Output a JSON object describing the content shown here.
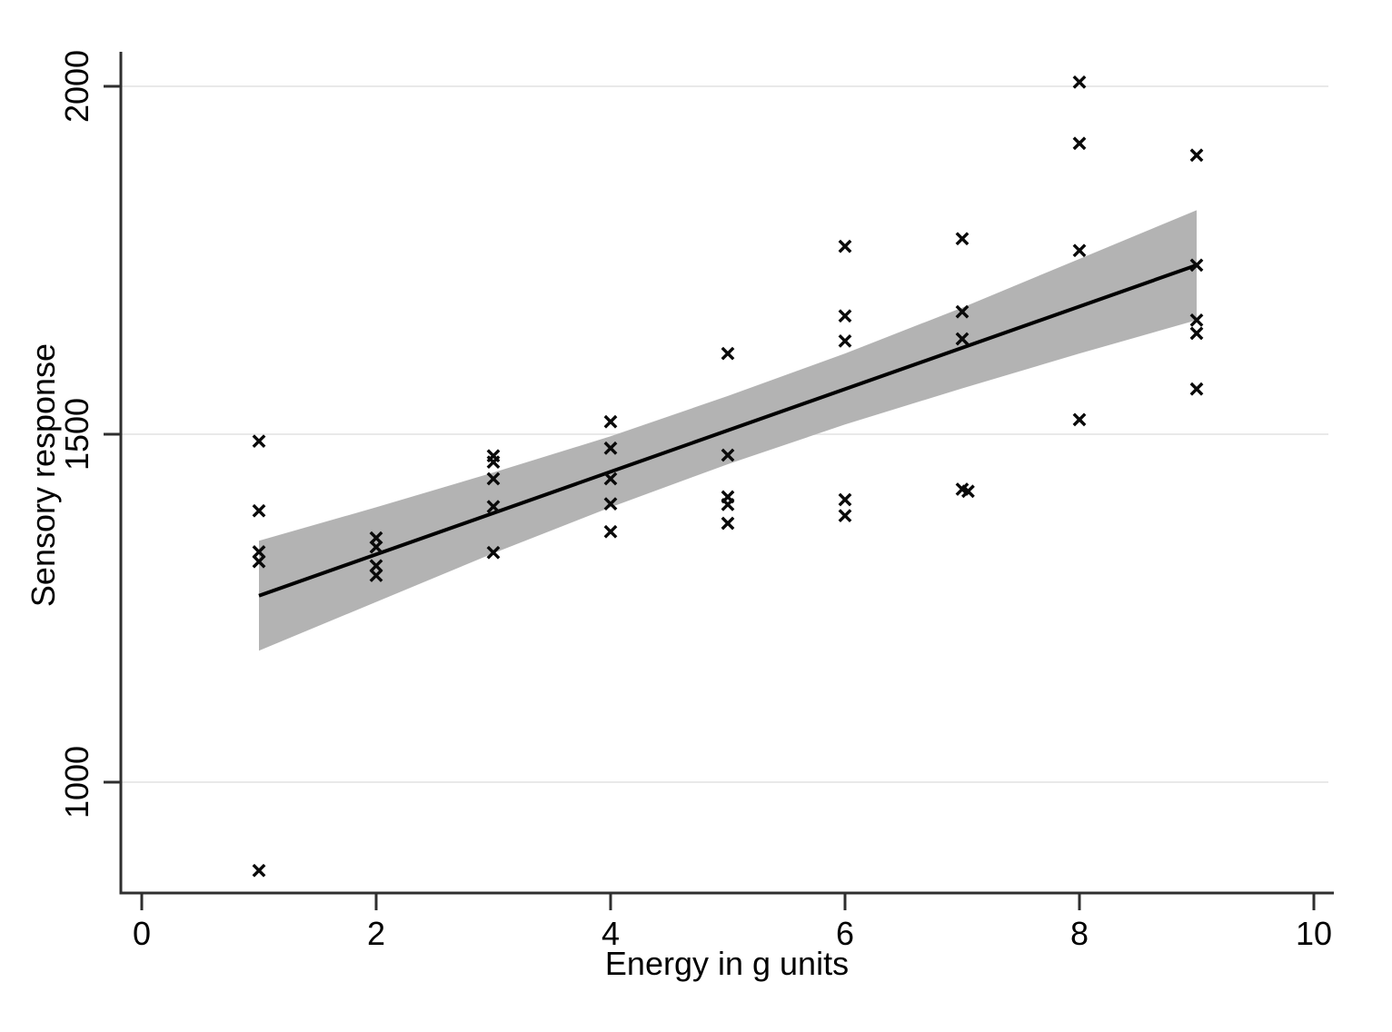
{
  "chart_data": {
    "type": "scatter",
    "title": "",
    "xlabel": "Energy in g units",
    "ylabel": "Sensory response",
    "xlim": [
      0,
      10.3
    ],
    "ylim": [
      840,
      2040
    ],
    "x_ticks": [
      0,
      2,
      4,
      6,
      8,
      10
    ],
    "y_ticks": [
      1000,
      1500,
      2000
    ],
    "grid": "horizontal-light",
    "legend_position": "none",
    "marker": "x",
    "points": [
      {
        "x": 1,
        "y": 1490
      },
      {
        "x": 1,
        "y": 1390
      },
      {
        "x": 1,
        "y": 1331
      },
      {
        "x": 1,
        "y": 1317
      },
      {
        "x": 1,
        "y": 873
      },
      {
        "x": 2,
        "y": 1351
      },
      {
        "x": 2,
        "y": 1338
      },
      {
        "x": 2,
        "y": 1311
      },
      {
        "x": 2,
        "y": 1297
      },
      {
        "x": 3,
        "y": 1469
      },
      {
        "x": 3,
        "y": 1460
      },
      {
        "x": 3,
        "y": 1436
      },
      {
        "x": 3,
        "y": 1396
      },
      {
        "x": 3,
        "y": 1330
      },
      {
        "x": 4,
        "y": 1518
      },
      {
        "x": 4,
        "y": 1480
      },
      {
        "x": 4,
        "y": 1436
      },
      {
        "x": 4,
        "y": 1400
      },
      {
        "x": 4,
        "y": 1360
      },
      {
        "x": 5,
        "y": 1616
      },
      {
        "x": 5,
        "y": 1470
      },
      {
        "x": 5,
        "y": 1410
      },
      {
        "x": 5,
        "y": 1399
      },
      {
        "x": 5,
        "y": 1372
      },
      {
        "x": 6,
        "y": 1770
      },
      {
        "x": 6,
        "y": 1670
      },
      {
        "x": 6,
        "y": 1634
      },
      {
        "x": 6,
        "y": 1406
      },
      {
        "x": 6,
        "y": 1383
      },
      {
        "x": 7,
        "y": 1781
      },
      {
        "x": 7,
        "y": 1676
      },
      {
        "x": 7,
        "y": 1637
      },
      {
        "x": 7,
        "y": 1421
      },
      {
        "x": 7.05,
        "y": 1418
      },
      {
        "x": 8,
        "y": 2006
      },
      {
        "x": 8,
        "y": 1918
      },
      {
        "x": 8,
        "y": 1764
      },
      {
        "x": 8,
        "y": 1521
      },
      {
        "x": 9,
        "y": 1901
      },
      {
        "x": 9,
        "y": 1743
      },
      {
        "x": 9,
        "y": 1664
      },
      {
        "x": 9,
        "y": 1645
      },
      {
        "x": 9,
        "y": 1565
      }
    ],
    "fit_line": {
      "x1": 1,
      "y1": 1268,
      "x2": 9,
      "y2": 1743
    },
    "ci_band": {
      "x": [
        1,
        2,
        3,
        4,
        5,
        6,
        7,
        8,
        9
      ],
      "upper": [
        1347,
        1395,
        1445,
        1497,
        1555,
        1616,
        1682,
        1752,
        1822
      ],
      "lower": [
        1189,
        1259,
        1329,
        1395,
        1457,
        1514,
        1566,
        1616,
        1664
      ]
    },
    "colors": {
      "background": "#ffffff",
      "band": "#b3b3b3",
      "fit_line": "#000000",
      "marker": "#0a0a0a",
      "grid": "#e9e9e9",
      "axis": "#2f2f2f",
      "text": "#000000"
    }
  }
}
